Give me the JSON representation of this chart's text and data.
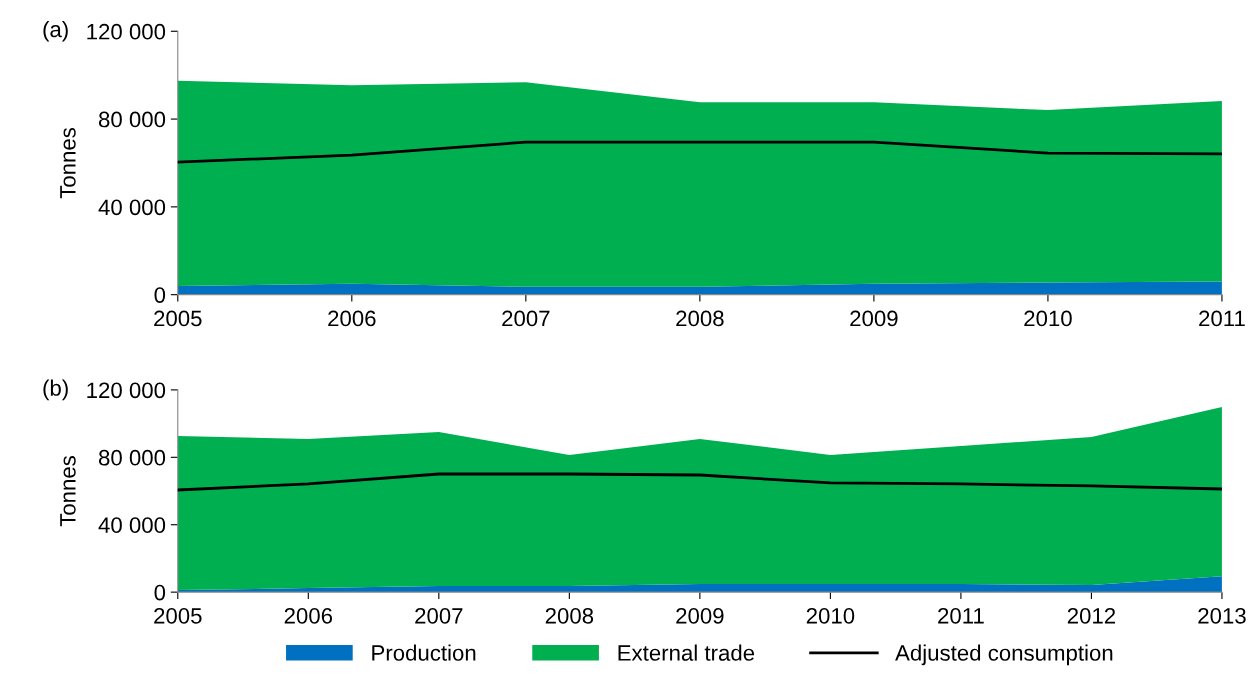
{
  "chart_data": [
    {
      "type": "area",
      "title": "(a)",
      "ylabel": "Tonnes",
      "stacked": true,
      "legend": false,
      "grid": false,
      "categories": [
        "2005",
        "2006",
        "2007",
        "2008",
        "2009",
        "2010",
        "2011"
      ],
      "ylim": [
        0,
        120000
      ],
      "yticks": [
        0,
        {
          "value": 40000,
          "label": "40 000"
        },
        {
          "value": 80000,
          "label": "80 000"
        },
        {
          "value": 120000,
          "label": "120 000"
        }
      ],
      "series": [
        {
          "color": "#0070c0",
          "values": [
            4000,
            5000,
            3600,
            3600,
            5000,
            5500,
            6000
          ]
        },
        {
          "color": "#00b050",
          "values": [
            93500,
            90400,
            93200,
            84100,
            82700,
            78600,
            82200
          ]
        },
        {
          "type": "line",
          "color": "#000000",
          "values": [
            60400,
            63600,
            69500,
            69500,
            69500,
            64500,
            64100
          ]
        }
      ]
    },
    {
      "type": "area",
      "title": "(b)",
      "ylabel": "Tonnes",
      "stacked": true,
      "legend": "bottom",
      "grid": false,
      "categories": [
        "2005",
        "2006",
        "2007",
        "2008",
        "2009",
        "2010",
        "2011",
        "2012",
        "2013"
      ],
      "ylim": [
        0,
        120000
      ],
      "yticks": [
        0,
        {
          "value": 40000,
          "label": "40 000"
        },
        {
          "value": 80000,
          "label": "80 000"
        },
        {
          "value": 120000,
          "label": "120 000"
        }
      ],
      "series": [
        {
          "name": "Production",
          "color": "#0070c0",
          "values": [
            1200,
            2400,
            3600,
            3600,
            4800,
            4800,
            4800,
            4200,
            9500
          ]
        },
        {
          "name": "External trade",
          "color": "#00b050",
          "values": [
            91500,
            88500,
            91400,
            77800,
            86100,
            76600,
            81900,
            87900,
            100400
          ]
        },
        {
          "name": "Adjusted consumption",
          "type": "line",
          "color": "#000000",
          "values": [
            60600,
            64200,
            70100,
            70100,
            69500,
            64800,
            64200,
            63000,
            61200
          ]
        }
      ]
    }
  ]
}
